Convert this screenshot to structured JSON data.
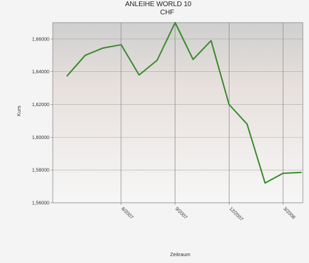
{
  "chart_data": {
    "type": "line",
    "title": "ANLEIHE WORLD 10",
    "subtitle": "CHF",
    "xlabel": "Zeitraum",
    "ylabel": "Kurs",
    "x_tick_labels": [
      "6/2007",
      "9/2007",
      "12/2007",
      "3/2008"
    ],
    "x_tick_positions": [
      4,
      7,
      10,
      13
    ],
    "y_tick_labels": [
      "1,56000",
      "1,58000",
      "1,60000",
      "1,62000",
      "1,64000",
      "1,66000"
    ],
    "ylim": [
      1.56,
      1.67
    ],
    "xlim": [
      0.2,
      14.1
    ],
    "grid": true,
    "series": [
      {
        "color": "#3a8a2a",
        "x": [
          1,
          2,
          3,
          4,
          5,
          6,
          7,
          8,
          9,
          10,
          11,
          12,
          13,
          14
        ],
        "values": [
          1.6375,
          1.65,
          1.6545,
          1.6565,
          1.638,
          1.647,
          1.67,
          1.6475,
          1.659,
          1.62,
          1.608,
          1.572,
          1.578,
          1.5785
        ]
      }
    ]
  }
}
